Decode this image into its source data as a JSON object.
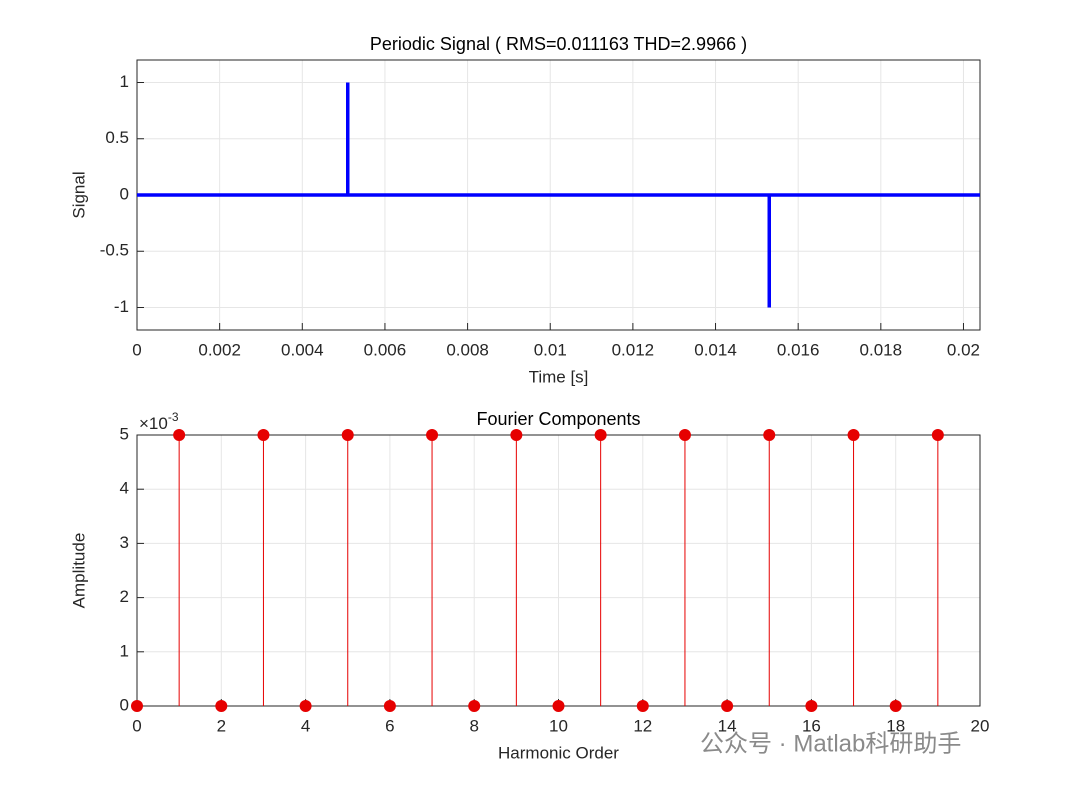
{
  "chart_data": [
    {
      "type": "line",
      "title": "Periodic Signal ( RMS=0.011163 THD=2.9966 )",
      "x_label": "Time [s]",
      "y_label": "Signal",
      "x": [
        0,
        0.0051,
        0.0051,
        0.0051,
        0.0153,
        0.0153,
        0.0153,
        0.0204
      ],
      "values": [
        0,
        0,
        1,
        0,
        0,
        -1,
        0,
        0
      ],
      "color": "#0000ff",
      "xlim": [
        0,
        0.0204
      ],
      "xticks": [
        0,
        0.002,
        0.004,
        0.006,
        0.008,
        0.01,
        0.012,
        0.014,
        0.016,
        0.018,
        0.02
      ],
      "ylim": [
        -1.2,
        1.2
      ],
      "yticks": [
        -1,
        -0.5,
        0,
        0.5,
        1
      ],
      "grid": true
    },
    {
      "type": "stem",
      "title": "Fourier Components",
      "x_label": "Harmonic Order",
      "y_label": "Amplitude",
      "y_multiplier": {
        "base": "×10",
        "exponent": "-3"
      },
      "x": [
        0,
        1,
        2,
        3,
        4,
        5,
        6,
        7,
        8,
        9,
        10,
        11,
        12,
        13,
        14,
        15,
        16,
        17,
        18,
        19
      ],
      "values": [
        0,
        0.005,
        0,
        0.005,
        0,
        0.005,
        0,
        0.005,
        0,
        0.005,
        0,
        0.005,
        0,
        0.005,
        0,
        0.005,
        0,
        0.005,
        0,
        0.005
      ],
      "color": "#e60000",
      "xlim": [
        0,
        20
      ],
      "xticks": [
        0,
        2,
        4,
        6,
        8,
        10,
        12,
        14,
        16,
        18,
        20
      ],
      "ylim": [
        0,
        0.005
      ],
      "yticks": [
        0,
        {
          "value": 0.001,
          "label": "1"
        },
        {
          "value": 0.002,
          "label": "2"
        },
        {
          "value": 0.003,
          "label": "3"
        },
        {
          "value": 0.004,
          "label": "4"
        },
        {
          "value": 0.005,
          "label": "5"
        }
      ],
      "grid": true
    }
  ],
  "watermark": "公众号 · Matlab科研助手"
}
